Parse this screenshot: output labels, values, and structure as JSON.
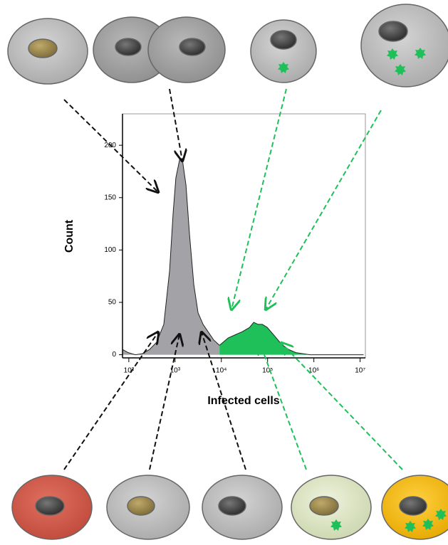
{
  "chart_data": {
    "type": "area",
    "x_label": "Infected cells",
    "y_label": "Count",
    "log_x": true,
    "xlim": [
      73,
      13000000
    ],
    "ylim": [
      -3,
      230
    ],
    "xticks": [
      {
        "value": 100,
        "label": "10²"
      },
      {
        "value": 1000,
        "label": "10³"
      },
      {
        "value": 10000,
        "label": "10⁴"
      },
      {
        "value": 100000,
        "label": "10⁵"
      },
      {
        "value": 1000000,
        "label": "10⁶"
      },
      {
        "value": 10000000,
        "label": "10⁷"
      }
    ],
    "yticks": [
      0,
      50,
      100,
      150,
      200
    ],
    "x": [
      73,
      97,
      138,
      196,
      280,
      400,
      570,
      760,
      906,
      1040,
      1250,
      1440,
      1720,
      2050,
      2540,
      3140,
      4030,
      5160,
      6860,
      9120,
      14000,
      19900,
      28400,
      40600,
      50200,
      62100,
      76900,
      98600,
      141000,
      200000,
      286000,
      408000,
      582000,
      832000,
      1190000,
      11900000
    ],
    "series": [
      {
        "color": "#a3a3a7",
        "values": [
          5,
          2,
          0,
          1,
          5,
          12,
          29,
          80,
          135,
          169,
          186,
          186,
          162,
          115,
          67,
          40,
          29,
          22,
          14,
          9,
          null,
          null,
          null,
          null,
          null,
          null,
          null,
          null,
          null,
          null,
          null,
          null,
          null,
          null,
          null,
          null
        ]
      },
      {
        "color": "#1fc05a",
        "values": [
          null,
          null,
          null,
          null,
          null,
          null,
          null,
          null,
          null,
          null,
          null,
          null,
          null,
          null,
          null,
          null,
          null,
          null,
          null,
          9,
          16,
          19,
          22,
          26,
          31,
          29,
          29,
          26,
          18,
          10,
          5,
          2,
          1,
          0,
          0,
          0
        ]
      }
    ]
  }
}
